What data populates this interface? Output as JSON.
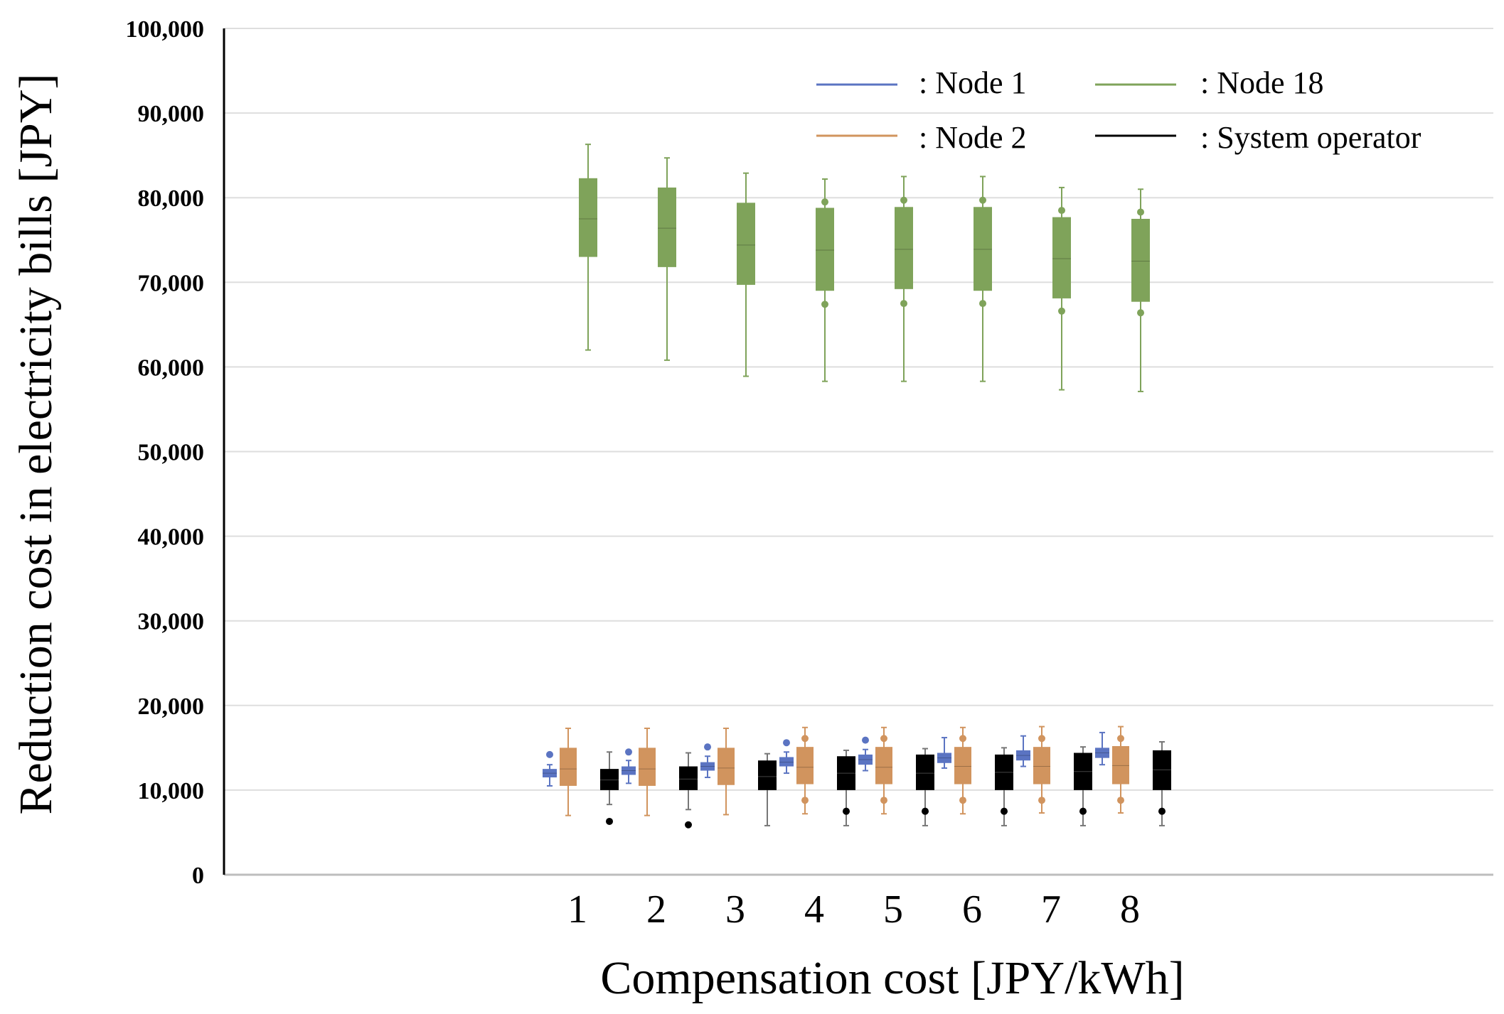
{
  "chart_data": {
    "type": "box",
    "title": "",
    "xlabel": "Compensation cost [JPY/kWh]",
    "ylabel": "Reduction cost in electricity bills [JPY]",
    "ylim": [
      0,
      100000
    ],
    "yticks": [
      0,
      10000,
      20000,
      30000,
      40000,
      50000,
      60000,
      70000,
      80000,
      90000,
      100000
    ],
    "ytick_labels": [
      "0",
      "10,000",
      "20,000",
      "30,000",
      "40,000",
      "50,000",
      "60,000",
      "70,000",
      "80,000",
      "90,000",
      "100,000"
    ],
    "categories": [
      "1",
      "2",
      "3",
      "4",
      "5",
      "6",
      "7",
      "8"
    ],
    "grid": true,
    "legend_position": "top-right",
    "legend": [
      {
        "label": ": Node 1",
        "series": "Node 1"
      },
      {
        "label": ": Node 18",
        "series": "Node 18"
      },
      {
        "label": ": Node 2",
        "series": "Node 2"
      },
      {
        "label": ": System operator",
        "series": "System operator"
      }
    ],
    "series": [
      {
        "name": "Node 1",
        "color": "#5b74c2",
        "boxes": [
          {
            "min": 10500,
            "q1": 11500,
            "median": 12000,
            "q3": 12500,
            "max": 13000,
            "outliers": [
              14200
            ]
          },
          {
            "min": 10800,
            "q1": 11800,
            "median": 12300,
            "q3": 12800,
            "max": 13500,
            "outliers": [
              14500
            ]
          },
          {
            "min": 11500,
            "q1": 12300,
            "median": 12800,
            "q3": 13300,
            "max": 14000,
            "outliers": [
              15100
            ]
          },
          {
            "min": 12000,
            "q1": 12800,
            "median": 13300,
            "q3": 13900,
            "max": 14500,
            "outliers": [
              15600
            ]
          },
          {
            "min": 12300,
            "q1": 13000,
            "median": 13600,
            "q3": 14200,
            "max": 14800,
            "outliers": [
              15900
            ]
          },
          {
            "min": 12600,
            "q1": 13200,
            "median": 13800,
            "q3": 14400,
            "max": 16200,
            "outliers": []
          },
          {
            "min": 12800,
            "q1": 13500,
            "median": 14100,
            "q3": 14700,
            "max": 16400,
            "outliers": []
          },
          {
            "min": 13000,
            "q1": 13800,
            "median": 14400,
            "q3": 15000,
            "max": 16800,
            "outliers": []
          }
        ]
      },
      {
        "name": "Node 2",
        "color": "#d1945e",
        "boxes": [
          {
            "min": 7000,
            "q1": 10500,
            "median": 12500,
            "q3": 15000,
            "max": 17300,
            "outliers": []
          },
          {
            "min": 7000,
            "q1": 10500,
            "median": 12500,
            "q3": 15000,
            "max": 17300,
            "outliers": []
          },
          {
            "min": 7100,
            "q1": 10600,
            "median": 12600,
            "q3": 15000,
            "max": 17300,
            "outliers": []
          },
          {
            "min": 7200,
            "q1": 10700,
            "median": 12700,
            "q3": 15100,
            "max": 17400,
            "outliers": [
              8800,
              16100
            ]
          },
          {
            "min": 7200,
            "q1": 10700,
            "median": 12700,
            "q3": 15100,
            "max": 17400,
            "outliers": [
              8800,
              16100
            ]
          },
          {
            "min": 7200,
            "q1": 10700,
            "median": 12800,
            "q3": 15100,
            "max": 17400,
            "outliers": [
              8800,
              16100
            ]
          },
          {
            "min": 7300,
            "q1": 10700,
            "median": 12800,
            "q3": 15100,
            "max": 17500,
            "outliers": [
              8800,
              16100
            ]
          },
          {
            "min": 7300,
            "q1": 10700,
            "median": 12900,
            "q3": 15200,
            "max": 17500,
            "outliers": [
              8800,
              16100
            ]
          }
        ]
      },
      {
        "name": "Node 18",
        "color": "#7fa35a",
        "boxes": [
          {
            "min": 62000,
            "q1": 73000,
            "median": 77500,
            "q3": 82300,
            "max": 86300,
            "outliers": []
          },
          {
            "min": 60800,
            "q1": 71800,
            "median": 76400,
            "q3": 81200,
            "max": 84700,
            "outliers": []
          },
          {
            "min": 58900,
            "q1": 69700,
            "median": 74400,
            "q3": 79400,
            "max": 82900,
            "outliers": []
          },
          {
            "min": 58300,
            "q1": 69000,
            "median": 73800,
            "q3": 78800,
            "max": 82200,
            "outliers": [
              67400,
              79500
            ]
          },
          {
            "min": 58300,
            "q1": 69200,
            "median": 73900,
            "q3": 78900,
            "max": 82500,
            "outliers": [
              67500,
              79700
            ]
          },
          {
            "min": 58300,
            "q1": 69000,
            "median": 73900,
            "q3": 78900,
            "max": 82500,
            "outliers": [
              67500,
              79700
            ]
          },
          {
            "min": 57300,
            "q1": 68100,
            "median": 72800,
            "q3": 77700,
            "max": 81200,
            "outliers": [
              66600,
              78500
            ]
          },
          {
            "min": 57100,
            "q1": 67700,
            "median": 72500,
            "q3": 77500,
            "max": 81000,
            "outliers": [
              66400,
              78300
            ]
          }
        ]
      },
      {
        "name": "System operator",
        "color": "#000000",
        "boxes": [
          {
            "min": 8300,
            "q1": 10000,
            "median": 11200,
            "q3": 12500,
            "max": 14500,
            "outliers": [
              6300
            ]
          },
          {
            "min": 7700,
            "q1": 10000,
            "median": 11300,
            "q3": 12800,
            "max": 14400,
            "outliers": [
              5900
            ]
          },
          {
            "min": 5800,
            "q1": 10000,
            "median": 11600,
            "q3": 13500,
            "max": 14300,
            "outliers": []
          },
          {
            "min": 5800,
            "q1": 10000,
            "median": 12000,
            "q3": 14000,
            "max": 14700,
            "outliers": [
              7500
            ]
          },
          {
            "min": 5800,
            "q1": 10000,
            "median": 12000,
            "q3": 14200,
            "max": 14900,
            "outliers": [
              7500
            ]
          },
          {
            "min": 5800,
            "q1": 10000,
            "median": 12100,
            "q3": 14200,
            "max": 15000,
            "outliers": [
              7500
            ]
          },
          {
            "min": 5800,
            "q1": 10000,
            "median": 12200,
            "q3": 14400,
            "max": 15100,
            "outliers": [
              7500
            ]
          },
          {
            "min": 5800,
            "q1": 10000,
            "median": 12400,
            "q3": 14700,
            "max": 15700,
            "outliers": [
              7500
            ]
          }
        ]
      }
    ]
  }
}
